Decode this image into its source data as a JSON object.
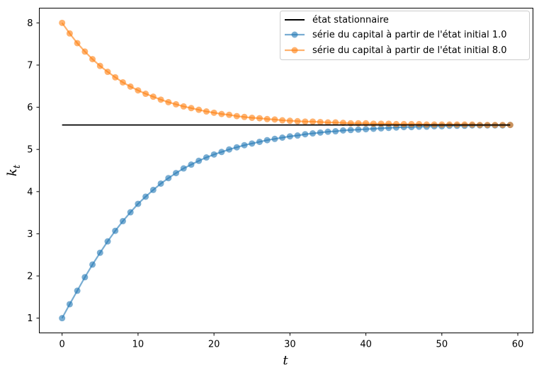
{
  "chart_data": {
    "type": "line",
    "title": "",
    "xlabel": "t",
    "ylabel": "k",
    "ylabel_subscript": "t",
    "xlim": [
      -3,
      62
    ],
    "ylim": [
      0.65,
      8.35
    ],
    "xticks": [
      0,
      10,
      20,
      30,
      40,
      50,
      60
    ],
    "yticks": [
      1,
      2,
      3,
      4,
      5,
      6,
      7,
      8
    ],
    "grid": false,
    "legend_position": "top-right",
    "steady_state": {
      "name": "état stationnaire",
      "value": 5.58,
      "x_range": [
        0,
        59
      ],
      "color": "#000000"
    },
    "series": [
      {
        "name": "série du capital à partir de l'état initial 1.0",
        "color": "#1f77b4",
        "initial": 1.0,
        "x_start": 0,
        "values": [
          1.0,
          1.33,
          1.65,
          1.97,
          2.27,
          2.55,
          2.82,
          3.07,
          3.3,
          3.51,
          3.71,
          3.88,
          4.04,
          4.19,
          4.32,
          4.44,
          4.55,
          4.64,
          4.73,
          4.81,
          4.88,
          4.94,
          5.0,
          5.05,
          5.1,
          5.14,
          5.18,
          5.22,
          5.25,
          5.28,
          5.31,
          5.33,
          5.36,
          5.38,
          5.4,
          5.42,
          5.43,
          5.45,
          5.46,
          5.47,
          5.48,
          5.49,
          5.5,
          5.51,
          5.52,
          5.53,
          5.53,
          5.54,
          5.54,
          5.55,
          5.55,
          5.56,
          5.56,
          5.56,
          5.57,
          5.57,
          5.57,
          5.57,
          5.57,
          5.58
        ]
      },
      {
        "name": "série du capital à partir de l'état initial 8.0",
        "color": "#ff7f0e",
        "initial": 8.0,
        "x_start": 0,
        "values": [
          8.0,
          7.75,
          7.52,
          7.32,
          7.14,
          6.98,
          6.84,
          6.71,
          6.59,
          6.49,
          6.4,
          6.32,
          6.25,
          6.18,
          6.12,
          6.07,
          6.02,
          5.98,
          5.94,
          5.9,
          5.87,
          5.84,
          5.82,
          5.79,
          5.77,
          5.75,
          5.74,
          5.72,
          5.71,
          5.69,
          5.68,
          5.67,
          5.66,
          5.66,
          5.65,
          5.64,
          5.64,
          5.63,
          5.62,
          5.62,
          5.62,
          5.61,
          5.61,
          5.61,
          5.6,
          5.6,
          5.6,
          5.6,
          5.59,
          5.59,
          5.59,
          5.59,
          5.59,
          5.59,
          5.59,
          5.58,
          5.58,
          5.58,
          5.58,
          5.58
        ]
      }
    ]
  }
}
